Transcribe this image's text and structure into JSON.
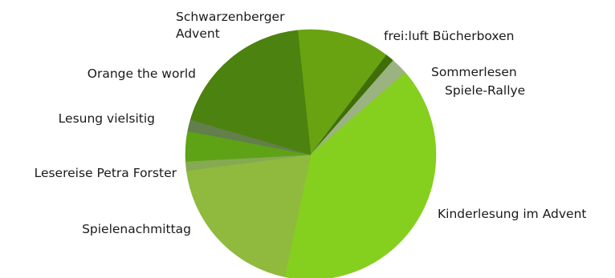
{
  "chart_data": {
    "type": "pie",
    "title": "",
    "legend": "none",
    "slices": [
      {
        "label": "frei:luft Bücherboxen",
        "value": 12.0,
        "color": "#6aa312"
      },
      {
        "label": "Sommerlesen",
        "value": 1.1,
        "color": "#3f6e08"
      },
      {
        "label": "Spiele-Rallye",
        "value": 2.2,
        "color": "#9bb380"
      },
      {
        "label": "Kinderlesung im Advent",
        "value": 39.7,
        "color": "#85cf1e"
      },
      {
        "label": "Spielenachmittag",
        "value": 19.6,
        "color": "#8fba3e"
      },
      {
        "label": "Lesereise Petra Forster",
        "value": 1.2,
        "color": "#86aa52"
      },
      {
        "label": "Lesung vielsitig",
        "value": 3.9,
        "color": "#5ea216"
      },
      {
        "label": "Orange the world",
        "value": 1.5,
        "color": "#637f4c"
      },
      {
        "label": "Schwarzenberger Advent",
        "value": 18.8,
        "color": "#4c820f"
      }
    ]
  }
}
